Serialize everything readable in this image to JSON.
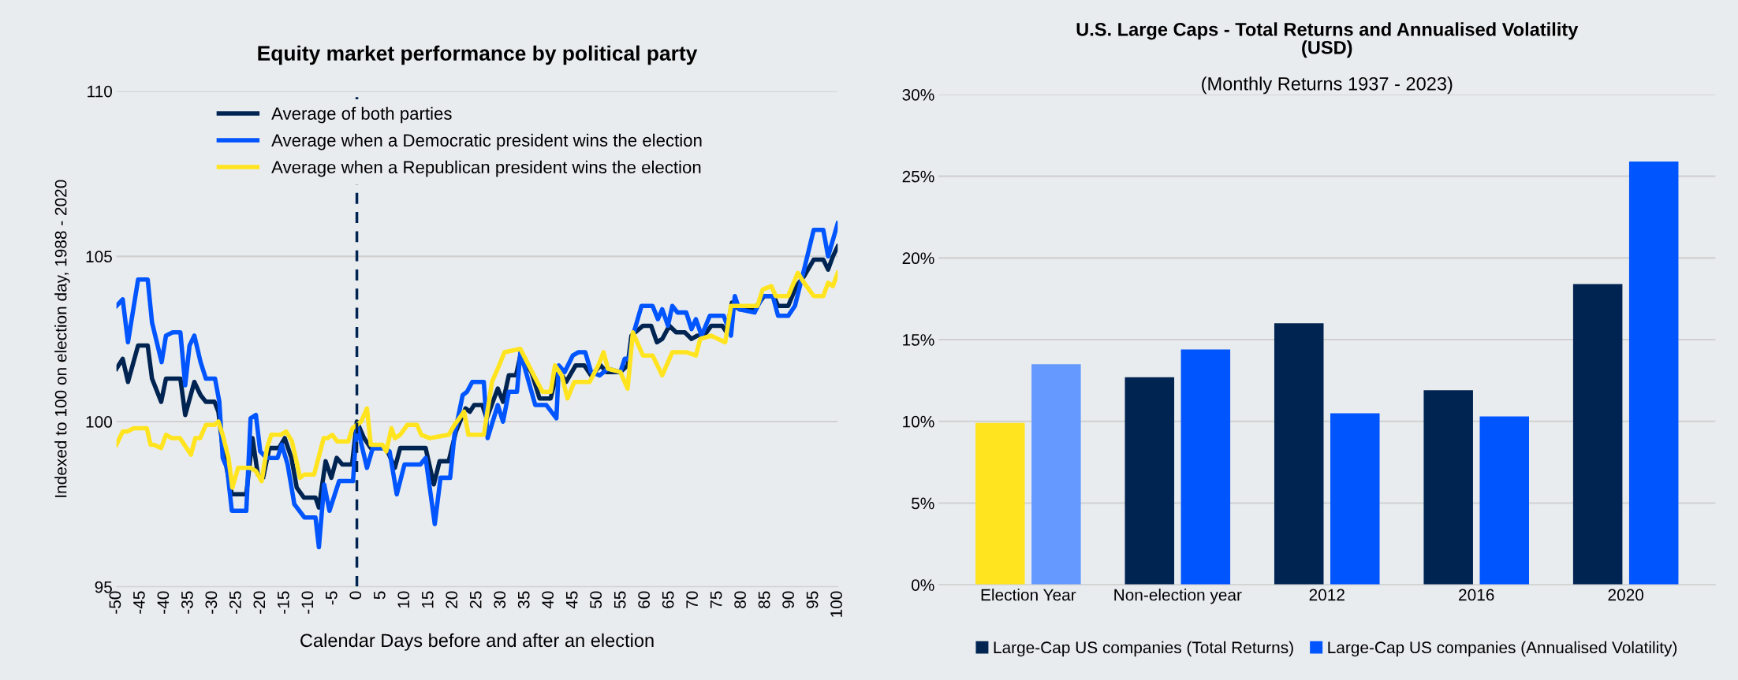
{
  "chart_data": [
    {
      "type": "line",
      "title": "Equity market performance by political party",
      "xlabel": "Calendar Days before and after an election",
      "ylabel": "Indexed to 100 on election day, 1988 - 2020",
      "xlim": [
        -50,
        100
      ],
      "xticks": [
        -50,
        -45,
        -40,
        -35,
        -30,
        -25,
        -20,
        -15,
        -10,
        -5,
        0,
        5,
        10,
        15,
        20,
        25,
        30,
        35,
        40,
        45,
        50,
        55,
        60,
        65,
        70,
        75,
        80,
        85,
        90,
        95,
        100
      ],
      "ylim": [
        95,
        110
      ],
      "yticks": [
        95,
        100,
        105,
        110
      ],
      "grid": "y",
      "legend": "top left",
      "ref_lines": [
        {
          "axis": "x",
          "value": 0,
          "color": "#002452",
          "line_style": "dashed"
        }
      ],
      "series": [
        {
          "name": "Average of both parties",
          "color": "#002452",
          "x": [
            -50,
            -48.7,
            -47.6,
            -45.5,
            -43.5,
            -42.6,
            -40.7,
            -39.7,
            -36.7,
            -35.7,
            -33.8,
            -32.5,
            -31.4,
            -29.6,
            -28.8,
            -27.9,
            -26,
            -23,
            -21.7,
            -20.6,
            -19.5,
            -18.2,
            -16.2,
            -15,
            -13.6,
            -12.5,
            -11,
            -8.6,
            -7.9,
            -6.5,
            -5.3,
            -4.2,
            -3,
            -1,
            0,
            1.5,
            2.9,
            6.1,
            7.9,
            9,
            13.1,
            14.3,
            16,
            17.2,
            19.1,
            20.6,
            22.6,
            23.5,
            24.4,
            26.1,
            27,
            29.3,
            30.4,
            31.6,
            33.1,
            34,
            36.3,
            38,
            40.3,
            41.8,
            43.5,
            45.5,
            47.3,
            48.7,
            50.7,
            51.9,
            54.8,
            56.3,
            57.1,
            59.5,
            61.2,
            62.4,
            63.5,
            65,
            66.4,
            68.2,
            69.6,
            70.8,
            72.2,
            73.7,
            76,
            76.9,
            78,
            79.5,
            82.7,
            84.7,
            86.7,
            87.6,
            89.7,
            91.4,
            93,
            95,
            97,
            98,
            99,
            100
          ],
          "values": [
            101.6,
            101.9,
            101.2,
            102.3,
            102.3,
            101.3,
            100.6,
            101.3,
            101.3,
            100.2,
            101.2,
            100.8,
            100.6,
            100.6,
            100.3,
            99.2,
            97.8,
            97.8,
            99.5,
            98.4,
            98.3,
            99.2,
            99.2,
            99.5,
            98.9,
            98.0,
            97.7,
            97.7,
            97.4,
            98.8,
            98.3,
            98.9,
            98.7,
            98.7,
            100.0,
            99.5,
            99.2,
            99.2,
            98.6,
            99.2,
            99.2,
            99.2,
            98.1,
            98.8,
            98.8,
            99.7,
            100.4,
            100.3,
            100.5,
            100.5,
            100.1,
            101.0,
            100.6,
            101.4,
            101.4,
            102.0,
            101.5,
            100.7,
            100.7,
            101.6,
            101.2,
            101.7,
            101.7,
            101.4,
            101.7,
            101.5,
            101.5,
            101.7,
            102.6,
            102.9,
            102.9,
            102.4,
            102.5,
            102.9,
            102.7,
            102.7,
            102.5,
            102.6,
            102.6,
            102.9,
            102.9,
            102.7,
            103.6,
            103.4,
            103.4,
            103.8,
            103.8,
            103.5,
            103.5,
            104.1,
            104.4,
            104.9,
            104.9,
            104.6,
            105.0,
            105.3
          ]
        },
        {
          "name": "Average when a Democratic president wins the election",
          "color": "#0055ff",
          "x": [
            -50,
            -48.7,
            -47.6,
            -45.5,
            -43.5,
            -42.6,
            -40.6,
            -39.7,
            -38.3,
            -36.7,
            -35.7,
            -34.8,
            -33.8,
            -32.5,
            -31.4,
            -29.5,
            -28.6,
            -27.9,
            -27,
            -26,
            -23,
            -22.1,
            -21,
            -20.1,
            -18.8,
            -16.5,
            -15.6,
            -14.4,
            -13,
            -10.9,
            -8.6,
            -7.9,
            -6.8,
            -5.7,
            -3.7,
            -0.8,
            0,
            2.1,
            3.3,
            5.6,
            6.8,
            8.3,
            9.9,
            13.2,
            14.3,
            16.2,
            17.4,
            19.4,
            20.3,
            22,
            22.9,
            24,
            26.4,
            27.2,
            29.3,
            30.4,
            31.6,
            33.3,
            34,
            37.1,
            39.4,
            41.5,
            42,
            43.2,
            44.9,
            46.1,
            47.5,
            48.7,
            50.5,
            52.2,
            54.8,
            55.7,
            56.6,
            57.4,
            59.2,
            61.5,
            62.6,
            63.5,
            64.7,
            65.6,
            66.7,
            68.5,
            69.6,
            70.5,
            71.7,
            73.4,
            76.3,
            77.8,
            78.6,
            79.5,
            82.7,
            84.4,
            86.5,
            87.6,
            89.7,
            91.1,
            93,
            95,
            97,
            98,
            100
          ],
          "values": [
            103.5,
            103.7,
            102.4,
            104.3,
            104.3,
            103.0,
            101.8,
            102.6,
            102.7,
            102.7,
            101.1,
            102.3,
            102.6,
            101.8,
            101.3,
            101.3,
            100.6,
            98.9,
            98.6,
            97.3,
            97.3,
            100.1,
            100.2,
            99.1,
            98.9,
            98.9,
            99.3,
            98.7,
            97.5,
            97.1,
            97.1,
            96.2,
            98.1,
            97.3,
            98.2,
            98.2,
            99.9,
            98.6,
            99.2,
            99.2,
            99.1,
            97.8,
            98.7,
            98.7,
            98.9,
            96.9,
            98.3,
            98.3,
            99.6,
            100.8,
            100.9,
            101.2,
            101.2,
            99.5,
            100.5,
            100.0,
            100.9,
            100.9,
            102.1,
            100.5,
            100.5,
            100.1,
            101.7,
            101.5,
            102.0,
            102.1,
            102.1,
            101.5,
            101.4,
            101.6,
            101.5,
            101.9,
            101.9,
            102.6,
            103.5,
            103.5,
            103.1,
            103.4,
            102.9,
            103.5,
            103.3,
            103.3,
            102.8,
            103.1,
            102.6,
            103.2,
            103.2,
            102.6,
            103.8,
            103.4,
            103.3,
            103.8,
            103.8,
            103.2,
            103.2,
            103.5,
            104.6,
            105.8,
            105.8,
            105.0,
            106.0
          ]
        },
        {
          "name": "Average when a Republican president wins the election",
          "color": "#ffe41f",
          "x": [
            -50,
            -48.7,
            -47.8,
            -46.4,
            -43.7,
            -42.9,
            -42.2,
            -40.7,
            -39.7,
            -38.5,
            -36.8,
            -34.5,
            -33.6,
            -32.6,
            -31.4,
            -29.6,
            -28.8,
            -27.9,
            -26.7,
            -25.9,
            -24.7,
            -22.1,
            -21,
            -19.8,
            -18.7,
            -17.8,
            -15.8,
            -14.7,
            -13.5,
            -11.8,
            -10.9,
            -8.9,
            -6.9,
            -6.1,
            -5.1,
            -4.1,
            -1.8,
            -0.9,
            0.9,
            2.1,
            2.9,
            5.3,
            6.1,
            7.2,
            7.9,
            9,
            10.5,
            12.5,
            13.4,
            15.2,
            19.1,
            20.3,
            22.3,
            23.2,
            26.4,
            28.1,
            29.3,
            30.7,
            34,
            36.8,
            38.6,
            40.3,
            41.2,
            42.6,
            43.8,
            45.2,
            48.4,
            50.2,
            51.3,
            52.2,
            54.8,
            56.3,
            57.4,
            59.5,
            61.5,
            63.5,
            65.6,
            68.5,
            70.5,
            71.4,
            73.7,
            76.6,
            77.8,
            79.5,
            83.3,
            84.4,
            86.2,
            87.1,
            89.7,
            91.7,
            93,
            95,
            97,
            98,
            99,
            100
          ],
          "values": [
            99.3,
            99.7,
            99.7,
            99.8,
            99.8,
            99.3,
            99.3,
            99.2,
            99.6,
            99.5,
            99.5,
            99.0,
            99.5,
            99.5,
            99.9,
            99.9,
            100.0,
            99.6,
            98.9,
            98.0,
            98.6,
            98.6,
            98.5,
            98.2,
            99.2,
            99.6,
            99.6,
            99.7,
            99.4,
            98.3,
            98.4,
            98.4,
            99.5,
            99.5,
            99.6,
            99.4,
            99.4,
            99.8,
            100.0,
            100.4,
            99.3,
            99.3,
            99.1,
            99.8,
            99.5,
            99.6,
            99.9,
            99.9,
            99.6,
            99.5,
            99.6,
            99.9,
            100.3,
            99.6,
            99.6,
            101.2,
            101.6,
            102.1,
            102.2,
            101.4,
            100.9,
            100.9,
            101.7,
            101.4,
            100.7,
            101.2,
            101.2,
            101.7,
            102.1,
            101.6,
            101.5,
            101.0,
            102.7,
            102.0,
            102.0,
            101.4,
            102.1,
            102.1,
            102.0,
            102.5,
            102.6,
            102.4,
            103.5,
            103.5,
            103.5,
            104.0,
            104.1,
            103.8,
            103.8,
            104.5,
            104.2,
            103.8,
            103.8,
            104.2,
            104.1,
            104.5
          ]
        }
      ]
    },
    {
      "type": "bar",
      "title": "U.S. Large Caps - Total Returns and Annualised Volatility\n(USD)",
      "subtitle": "(Monthly Returns 1937 - 2023)",
      "categories": [
        "Election Year",
        "Non-election year",
        "2012",
        "2016",
        "2020"
      ],
      "ylim": [
        0,
        30
      ],
      "yticks": [
        {
          "value": 0,
          "label": "0%"
        },
        {
          "value": 5,
          "label": "5%"
        },
        {
          "value": 10,
          "label": "10%"
        },
        {
          "value": 15,
          "label": "15%"
        },
        {
          "value": 20,
          "label": "20%"
        },
        {
          "value": 25,
          "label": "25%"
        },
        {
          "value": 30,
          "label": "30%"
        }
      ],
      "grid": "y",
      "legend": "bottom",
      "series": [
        {
          "name": "Large-Cap US companies (Total Returns)",
          "color": "#002452",
          "colors": [
            "#ffe41f",
            "#002452",
            "#002452",
            "#002452",
            "#002452"
          ],
          "values": [
            9.9,
            12.7,
            16.0,
            11.9,
            18.4
          ]
        },
        {
          "name": "Large-Cap US companies (Annualised Volatility)",
          "color": "#0055ff",
          "colors": [
            "#6699ff",
            "#0055ff",
            "#0055ff",
            "#0055ff",
            "#0055ff"
          ],
          "values": [
            13.5,
            14.4,
            10.5,
            10.3,
            25.9
          ]
        }
      ]
    }
  ]
}
